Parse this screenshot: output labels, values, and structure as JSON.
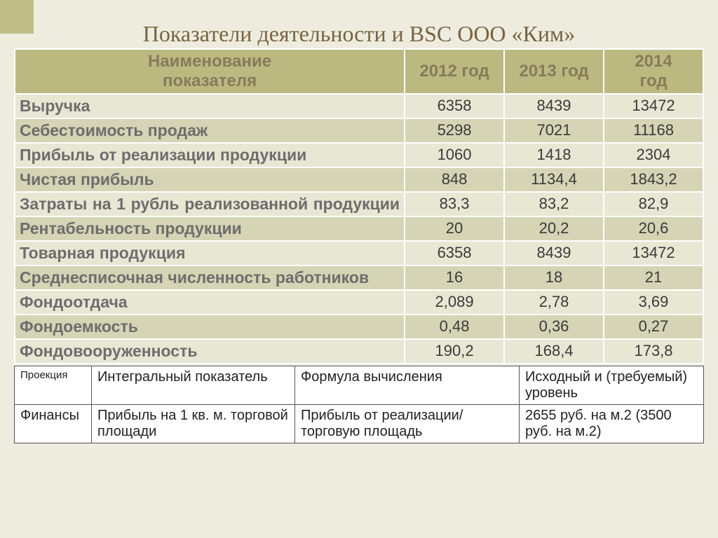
{
  "title": "Показатели деятельности и BSC ООО «Ким»",
  "main_table": {
    "header": {
      "name": "Наименование показателя",
      "y1": "2012 год",
      "y2": "2013 год",
      "y3": "2014 год"
    },
    "rows": [
      {
        "label": "Выручка",
        "v": [
          "6358",
          "8439",
          "13472"
        ]
      },
      {
        "label": "Себестоимость продаж",
        "v": [
          "5298",
          "7021",
          "11168"
        ]
      },
      {
        "label": "Прибыль от реализации продукции",
        "v": [
          "1060",
          "1418",
          "2304"
        ]
      },
      {
        "label": "Чистая прибыль",
        "v": [
          "848",
          "1134,4",
          "1843,2"
        ]
      },
      {
        "label": "Затраты на 1 рубль реализованной продукции",
        "v": [
          "83,3",
          "83,2",
          "82,9"
        ],
        "justify": true
      },
      {
        "label": "Рентабельность продукции",
        "v": [
          "20",
          "20,2",
          "20,6"
        ]
      },
      {
        "label": "Товарная продукция",
        "v": [
          "6358",
          "8439",
          "13472"
        ]
      },
      {
        "label": "Среднесписочная численность работников",
        "v": [
          "16",
          "18",
          "21"
        ]
      },
      {
        "label": "Фондоотдача",
        "v": [
          "2,089",
          "2,78",
          "3,69"
        ]
      },
      {
        "label": "Фондоемкость",
        "v": [
          "0,48",
          "0,36",
          "0,27"
        ]
      },
      {
        "label": "Фондовооруженность",
        "v": [
          "190,2",
          "168,4",
          "173,8"
        ]
      }
    ]
  },
  "sub_table": {
    "header": [
      "Проекция",
      "Интегральный показатель",
      "Формула вычисления",
      "Исходный и (требуемый) уровень"
    ],
    "row": [
      "Финансы",
      "Прибыль на 1 кв. м. торговой площади",
      "Прибыль от реализации/ торговую площадь",
      "2655 руб. на м.2 (3500 руб. на м.2)"
    ]
  },
  "colors": {
    "slide_bg": "#edecdf",
    "header_bg": "#bbb97f",
    "row_light": "#e8e7d4",
    "row_dark": "#d5d4b4",
    "title_color": "#786440",
    "corner_box": "#c0be89"
  }
}
